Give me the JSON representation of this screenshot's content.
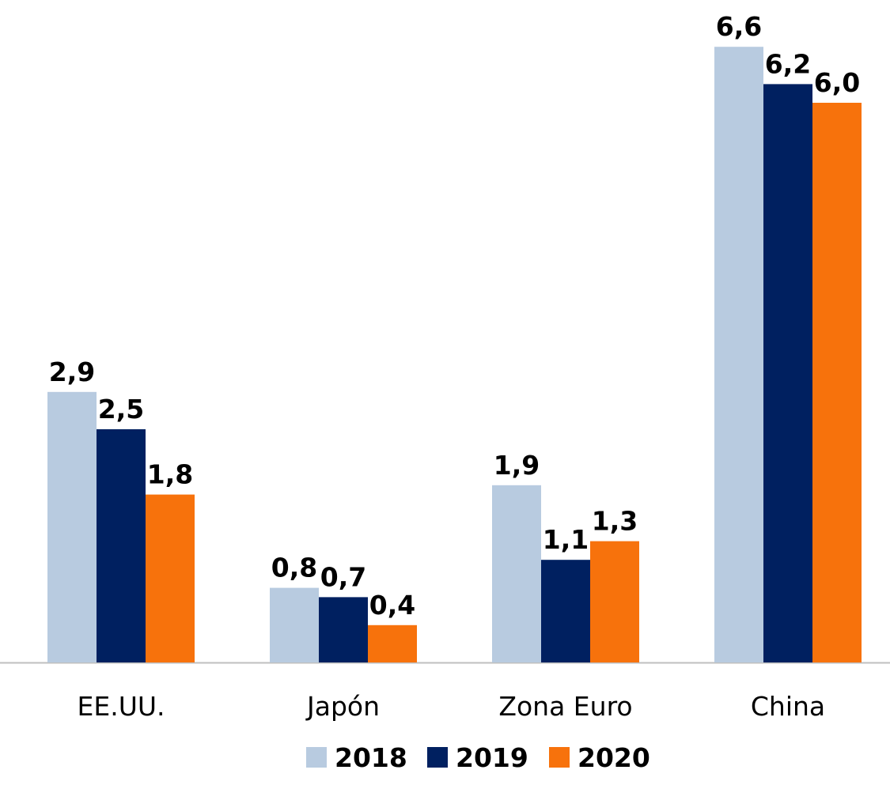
{
  "chart_data": {
    "type": "bar",
    "categories": [
      "EE.UU.",
      "Japón",
      "Zona Euro",
      "China"
    ],
    "series": [
      {
        "name": "2018",
        "color": "#b8cbe0",
        "values": [
          2.9,
          0.8,
          1.9,
          6.6
        ],
        "labels": [
          "2,9",
          "0,8",
          "1,9",
          "6,6"
        ]
      },
      {
        "name": "2019",
        "color": "#002060",
        "values": [
          2.5,
          0.7,
          1.1,
          6.2
        ],
        "labels": [
          "2,5",
          "0,7",
          "1,1",
          "6,2"
        ]
      },
      {
        "name": "2020",
        "color": "#f7720c",
        "values": [
          1.8,
          0.4,
          1.3,
          6.0
        ],
        "labels": [
          "1,8",
          "0,4",
          "1,3",
          "6,0"
        ]
      }
    ],
    "ylim": [
      0,
      7
    ],
    "grid": false,
    "legend_position": "bottom-center",
    "axis_color": "#bfbfbf"
  }
}
